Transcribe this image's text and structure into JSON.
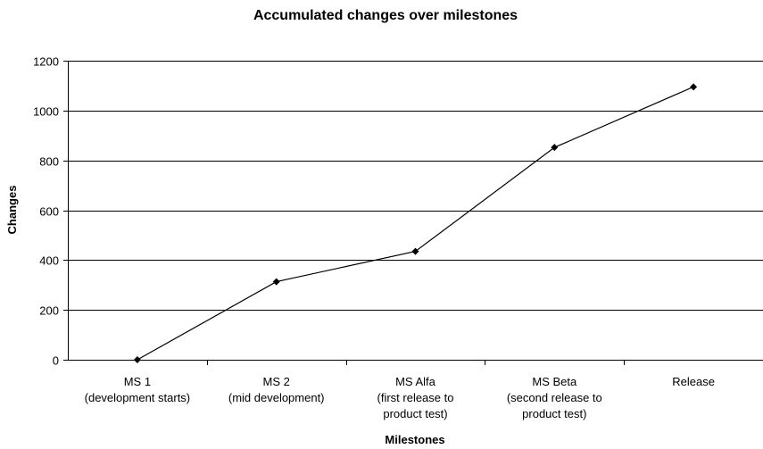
{
  "chart_data": {
    "type": "line",
    "title": "Accumulated changes over milestones",
    "xlabel": "Milestones",
    "ylabel": "Changes",
    "ylim": [
      0,
      1200
    ],
    "yticks": [
      0,
      200,
      400,
      600,
      800,
      1000,
      1200
    ],
    "grid": true,
    "categories": [
      [
        "MS 1",
        "(development starts)"
      ],
      [
        "MS 2",
        "(mid development)"
      ],
      [
        "MS Alfa",
        "(first release to",
        "product test)"
      ],
      [
        "MS Beta",
        "(second release to",
        "product test)"
      ],
      [
        "Release"
      ]
    ],
    "series": [
      {
        "values": [
          0,
          313,
          435,
          852,
          1095
        ],
        "color": "#000000"
      }
    ]
  }
}
